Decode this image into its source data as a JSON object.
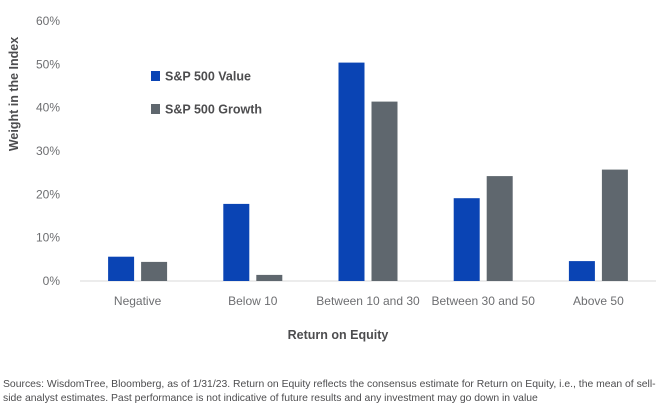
{
  "chart_data": {
    "type": "bar",
    "categories": [
      "Negative",
      "Below 10",
      "Between 10 and 30",
      "Between 30 and 50",
      "Above 50"
    ],
    "series": [
      {
        "name": "S&P 500 Value",
        "values": [
          5.6,
          17.8,
          50.4,
          19.1,
          4.6
        ],
        "color": "#0a44b4"
      },
      {
        "name": "S&P 500 Growth",
        "values": [
          4.4,
          1.4,
          41.4,
          24.2,
          25.7
        ],
        "color": "#5f676e"
      }
    ],
    "xlabel": "Return on Equity",
    "ylabel": "Weight in the Index",
    "ylim": [
      0,
      60
    ],
    "yticks": [
      0,
      10,
      20,
      30,
      40,
      50,
      60
    ],
    "ytick_labels": [
      "0%",
      "10%",
      "20%",
      "30%",
      "40%",
      "50%",
      "60%"
    ],
    "grid": false,
    "legend": "top-left"
  },
  "footnote": "Sources: WisdomTree, Bloomberg, as of 1/31/23. Return on Equity reflects the consensus estimate for Return on Equity, i.e., the mean of sell-side analyst estimates. Past performance is not indicative of future results and any investment may go down in value"
}
